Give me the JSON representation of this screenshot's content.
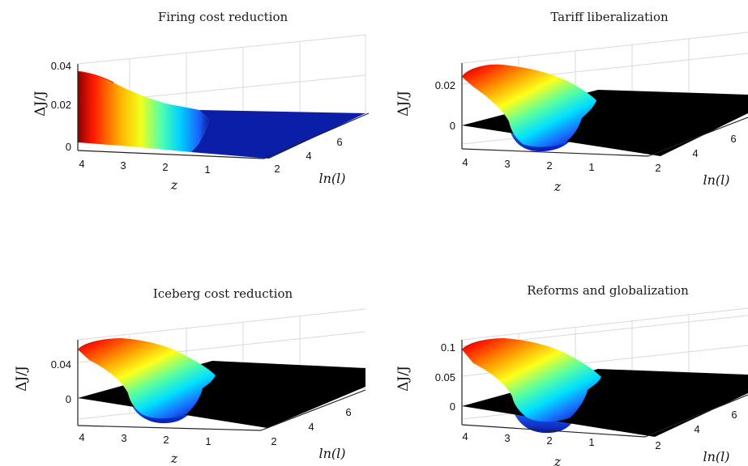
{
  "chart_data": [
    {
      "type": "surface",
      "title": "Firing cost reduction",
      "zlabel": "ΔJ/J",
      "xlabel": "z",
      "ylabel": "ln(l)",
      "x_ticks": [
        "4",
        "3",
        "2",
        "1"
      ],
      "y_ticks": [
        "2",
        "4",
        "6"
      ],
      "z_ticks": [
        "0",
        "0.02",
        "0.04"
      ],
      "zlim": [
        0,
        0.04
      ],
      "surface_profile_z": [
        4.3,
        4.0,
        3.6,
        3.2,
        2.8,
        2.4,
        2.0,
        1.6,
        1.2,
        0.8
      ],
      "surface_profile_dJ": [
        0.035,
        0.034,
        0.03,
        0.025,
        0.019,
        0.013,
        0.007,
        0.002,
        0.0,
        0.0
      ],
      "negative_region": false
    },
    {
      "type": "surface",
      "title": "Tariff liberalization",
      "zlabel": "ΔJ/J",
      "xlabel": "z",
      "ylabel": "ln(l)",
      "x_ticks": [
        "4",
        "3",
        "2",
        "1"
      ],
      "y_ticks": [
        "2",
        "4",
        "6"
      ],
      "z_ticks": [
        "0",
        "0.02"
      ],
      "zlim": [
        -0.01,
        0.03
      ],
      "surface_profile_z": [
        4.3,
        4.0,
        3.6,
        3.2,
        2.8,
        2.4,
        2.0,
        1.6
      ],
      "surface_profile_dJ": [
        0.027,
        0.028,
        0.026,
        0.02,
        0.012,
        0.003,
        -0.006,
        -0.009
      ],
      "negative_region": true
    },
    {
      "type": "surface",
      "title": "Iceberg cost reduction",
      "zlabel": "ΔJ/J",
      "xlabel": "z",
      "ylabel": "ln(l)",
      "x_ticks": [
        "4",
        "3",
        "2",
        "1"
      ],
      "y_ticks": [
        "2",
        "4",
        "6"
      ],
      "z_ticks": [
        "0",
        "0.04"
      ],
      "zlim": [
        -0.02,
        0.07
      ],
      "surface_profile_z": [
        4.3,
        4.0,
        3.6,
        3.2,
        2.8,
        2.4,
        2.0,
        1.6
      ],
      "surface_profile_dJ": [
        0.06,
        0.062,
        0.058,
        0.045,
        0.028,
        0.008,
        -0.012,
        -0.018
      ],
      "negative_region": true
    },
    {
      "type": "surface",
      "title": "Reforms and globalization",
      "zlabel": "ΔJ/J",
      "xlabel": "z",
      "ylabel": "ln(l)",
      "x_ticks": [
        "4",
        "3",
        "2",
        "1"
      ],
      "y_ticks": [
        "2",
        "4",
        "6"
      ],
      "z_ticks": [
        "0",
        "0.05",
        "0.1"
      ],
      "zlim": [
        -0.02,
        0.11
      ],
      "surface_profile_z": [
        4.3,
        4.0,
        3.6,
        3.2,
        2.8,
        2.4,
        2.0,
        1.6
      ],
      "surface_profile_dJ": [
        0.1,
        0.105,
        0.098,
        0.078,
        0.05,
        0.015,
        -0.015,
        -0.022
      ],
      "negative_region": true
    }
  ]
}
